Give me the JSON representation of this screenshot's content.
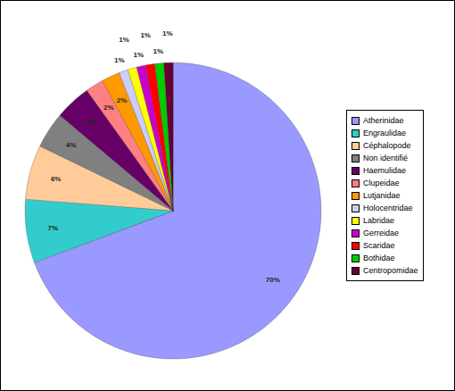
{
  "chart_data": {
    "type": "pie",
    "categories": [
      "Atherinidae",
      "Engraulidae",
      "Céphalopode",
      "Non identifié",
      "Haemulidae",
      "Clupeidae",
      "Lutjanidae",
      "Holocentridae",
      "Labridae",
      "Gerreidae",
      "Scaridae",
      "Bothidae",
      "Centropomidae"
    ],
    "values": [
      70,
      7,
      6,
      4,
      4,
      2,
      2,
      1,
      1,
      1,
      1,
      1,
      1
    ],
    "value_labels": [
      "70%",
      "7%",
      "6%",
      "4%",
      "4%",
      "2%",
      "2%",
      "1%",
      "1%",
      "1%",
      "1%",
      "1%",
      "1%"
    ],
    "colors": [
      "#9999ff",
      "#33cccc",
      "#ffcc99",
      "#808080",
      "#660066",
      "#ff8080",
      "#ff9900",
      "#ccccff",
      "#ffff00",
      "#cc00cc",
      "#ff0000",
      "#00cc00",
      "#660033"
    ],
    "data_labels": true,
    "legend": "right"
  }
}
